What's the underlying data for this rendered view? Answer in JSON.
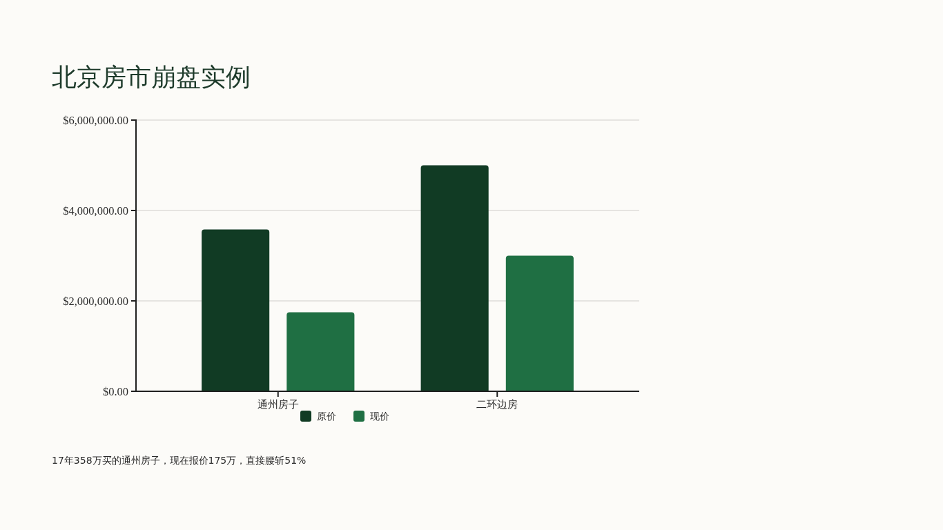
{
  "chart_data": {
    "type": "bar",
    "title": "北京房市崩盘实例",
    "categories": [
      "通州房子",
      "二环边房"
    ],
    "series": [
      {
        "name": "原价",
        "color": "#113b24",
        "values": [
          3580000,
          5000000
        ]
      },
      {
        "name": "现价",
        "color": "#1f6f43",
        "values": [
          1750000,
          3000000
        ]
      }
    ],
    "ylim": [
      0,
      6000000
    ],
    "yticks": [
      {
        "value": 0,
        "label": "$0.00"
      },
      {
        "value": 2000000,
        "label": "$2,000,000.00"
      },
      {
        "value": 4000000,
        "label": "$4,000,000.00"
      },
      {
        "value": 6000000,
        "label": "$6,000,000.00"
      }
    ],
    "grid": "y",
    "legend": "bottom",
    "annotations": [
      "17年358万买的通州房子，现在报价175万，直接腰斩51%"
    ]
  }
}
